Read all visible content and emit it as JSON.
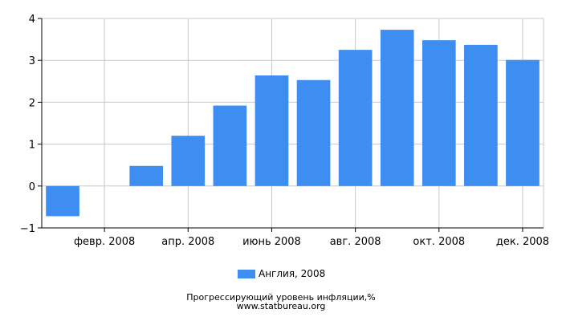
{
  "chart_data": {
    "type": "bar",
    "categories": [
      "янв. 2008",
      "февр. 2008",
      "март 2008",
      "апр. 2008",
      "май 2008",
      "июнь 2008",
      "июль 2008",
      "авг. 2008",
      "сент. 2008",
      "окт. 2008",
      "нояб. 2008",
      "дек. 2008"
    ],
    "x_tick_labels": [
      "февр. 2008",
      "апр. 2008",
      "июнь 2008",
      "авг. 2008",
      "окт. 2008",
      "дек. 2008"
    ],
    "series": [
      {
        "name": "Англия, 2008",
        "values": [
          -0.72,
          0.0,
          0.48,
          1.2,
          1.92,
          2.64,
          2.53,
          3.25,
          3.73,
          3.48,
          3.37,
          3.01
        ]
      }
    ],
    "ylim": [
      -1,
      4
    ],
    "y_ticks": [
      -1,
      0,
      1,
      2,
      3,
      4
    ],
    "grid": true,
    "legend_position": "bottom",
    "bar_color": "#3d8ef0"
  },
  "legend": {
    "label": "Англия, 2008"
  },
  "caption": {
    "title": "Прогрессирующий уровень инфляции,%",
    "site": "www.statbureau.org"
  }
}
